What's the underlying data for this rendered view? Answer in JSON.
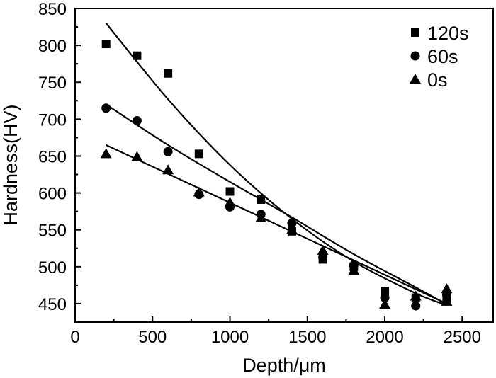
{
  "chart_data": {
    "type": "scatter",
    "title": "",
    "xlabel": "Depth/μm",
    "ylabel": "Hardness(HV)",
    "xlim": [
      0,
      2700
    ],
    "ylim": [
      425,
      850
    ],
    "xticks": [
      0,
      500,
      1000,
      1500,
      2000,
      2500
    ],
    "yticks": [
      450,
      500,
      550,
      600,
      650,
      700,
      750,
      800,
      850
    ],
    "grid": false,
    "legend_position": "top-right",
    "series": [
      {
        "name": "120s",
        "marker": "square",
        "x": [
          200,
          400,
          600,
          800,
          1000,
          1200,
          1400,
          1600,
          1800,
          2000,
          2000,
          2200,
          2400,
          2400
        ],
        "y": [
          802,
          786,
          762,
          653,
          602,
          591,
          548,
          510,
          500,
          467,
          462,
          458,
          460,
          455
        ],
        "fit_x": [
          200,
          600,
          1000,
          1400,
          1800,
          2200,
          2400
        ],
        "fit_y": [
          830,
          727,
          638,
          565,
          507,
          464,
          448
        ]
      },
      {
        "name": "60s",
        "marker": "circle",
        "x": [
          200,
          400,
          600,
          800,
          1000,
          1200,
          1400,
          1600,
          1800,
          2000,
          2200,
          2400
        ],
        "y": [
          715,
          698,
          656,
          598,
          581,
          571,
          559,
          513,
          502,
          458,
          447,
          462
        ],
        "fit_x": [
          200,
          600,
          1000,
          1400,
          1800,
          2200,
          2400
        ],
        "fit_y": [
          720,
          665,
          615,
          567,
          517,
          472,
          449
        ]
      },
      {
        "name": "0s",
        "marker": "triangle",
        "x": [
          200,
          400,
          600,
          800,
          1000,
          1200,
          1400,
          1600,
          1800,
          2000,
          2200,
          2400,
          2400
        ],
        "y": [
          653,
          649,
          631,
          601,
          587,
          566,
          550,
          522,
          495,
          449,
          460,
          470,
          453
        ],
        "fit_x": [
          200,
          2400
        ],
        "fit_y": [
          665,
          450
        ]
      }
    ]
  }
}
